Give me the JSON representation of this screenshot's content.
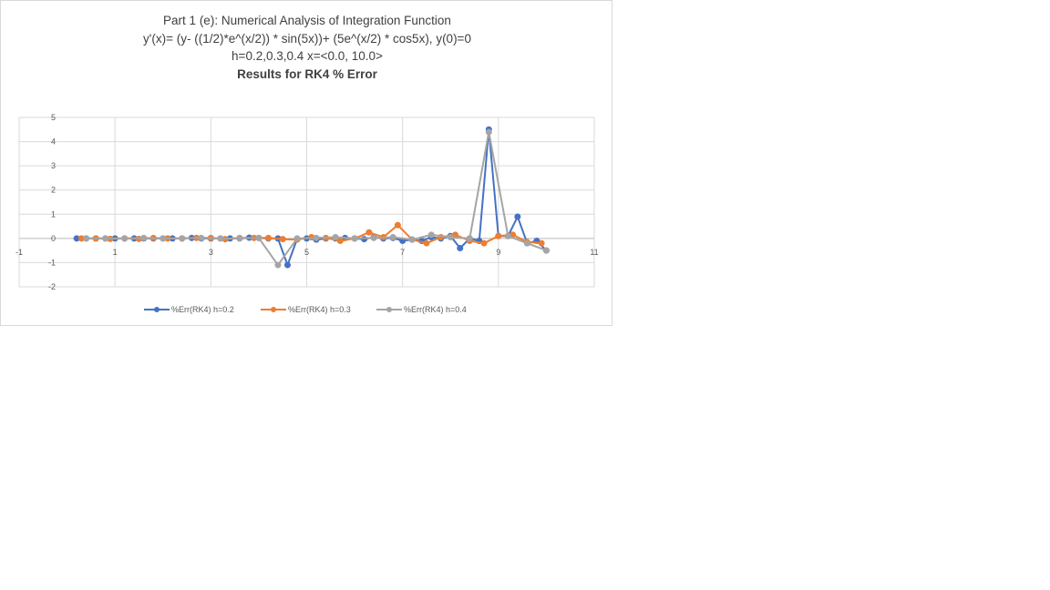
{
  "chart_data": {
    "type": "line",
    "title_lines": [
      "Part 1 (e): Numerical Analysis of Integration Function",
      "y'(x)= (y- ((1/2)*e^(x/2)) * sin(5x))+ (5e^(x/2) * cos5x), y(0)=0",
      "h=0.2,0.3,0.4  x=<0.0, 10.0>",
      "Results for RK4 % Error"
    ],
    "xlabel": "",
    "ylabel": "",
    "xlim": [
      -1,
      11
    ],
    "ylim": [
      -2,
      5
    ],
    "xticks": [
      -1,
      1,
      3,
      5,
      7,
      9,
      11
    ],
    "yticks": [
      -2,
      -1,
      0,
      1,
      2,
      3,
      4,
      5
    ],
    "grid": true,
    "legend_position": "bottom",
    "series": [
      {
        "name": "%Err(RK4) h=0.2",
        "color": "#4472C4",
        "x": [
          0.2,
          0.4,
          0.6,
          0.8,
          1.0,
          1.2,
          1.4,
          1.6,
          1.8,
          2.0,
          2.2,
          2.4,
          2.6,
          2.8,
          3.0,
          3.2,
          3.4,
          3.6,
          3.8,
          4.0,
          4.2,
          4.4,
          4.6,
          4.8,
          5.0,
          5.2,
          5.4,
          5.6,
          5.8,
          6.0,
          6.2,
          6.4,
          6.6,
          6.8,
          7.0,
          7.2,
          7.4,
          7.6,
          7.8,
          8.0,
          8.2,
          8.4,
          8.6,
          8.8,
          9.0,
          9.2,
          9.4,
          9.6,
          9.8,
          10.0
        ],
        "y": [
          0,
          0,
          0,
          0,
          0,
          0,
          0,
          0,
          0,
          0,
          0,
          0,
          0.02,
          0,
          0,
          0,
          0,
          0,
          0.03,
          0.02,
          0,
          0,
          -1.1,
          -0.02,
          0,
          -0.05,
          0,
          0,
          0.02,
          0,
          -0.03,
          0.05,
          0,
          0.02,
          -0.1,
          -0.05,
          -0.1,
          0.05,
          0,
          0.1,
          -0.4,
          0,
          -0.1,
          4.5,
          0.1,
          0.1,
          0.9,
          -0.2,
          -0.1,
          -0.5
        ]
      },
      {
        "name": "%Err(RK4) h=0.3",
        "color": "#ED7D31",
        "x": [
          0.3,
          0.6,
          0.9,
          1.2,
          1.5,
          1.8,
          2.1,
          2.4,
          2.7,
          3.0,
          3.3,
          3.6,
          3.9,
          4.2,
          4.5,
          4.8,
          5.1,
          5.4,
          5.7,
          6.0,
          6.3,
          6.6,
          6.9,
          7.2,
          7.5,
          7.8,
          8.1,
          8.4,
          8.7,
          9.0,
          9.3,
          9.6,
          9.9
        ],
        "y": [
          0,
          0,
          -0.02,
          0,
          -0.02,
          0.02,
          0,
          0,
          0.02,
          0.02,
          -0.03,
          0.02,
          0.02,
          0.02,
          -0.03,
          -0.05,
          0.05,
          0.02,
          -0.1,
          0,
          0.25,
          0.05,
          0.55,
          -0.05,
          -0.2,
          0.05,
          0.15,
          -0.1,
          -0.2,
          0.1,
          0.15,
          -0.15,
          -0.2
        ]
      },
      {
        "name": "%Err(RK4) h=0.4",
        "color": "#A5A5A5",
        "x": [
          0.4,
          0.8,
          1.2,
          1.6,
          2.0,
          2.4,
          2.8,
          3.2,
          3.6,
          4.0,
          4.4,
          4.8,
          5.2,
          5.6,
          6.0,
          6.4,
          6.8,
          7.2,
          7.6,
          8.0,
          8.4,
          8.8,
          9.2,
          9.6,
          10.0
        ],
        "y": [
          0,
          0,
          0,
          0.02,
          0,
          0,
          0.02,
          0,
          0,
          0.02,
          -1.1,
          0,
          0.02,
          0.05,
          0,
          0.02,
          0.05,
          -0.05,
          0.15,
          0.05,
          0,
          4.4,
          0.1,
          -0.2,
          -0.5
        ]
      }
    ]
  }
}
